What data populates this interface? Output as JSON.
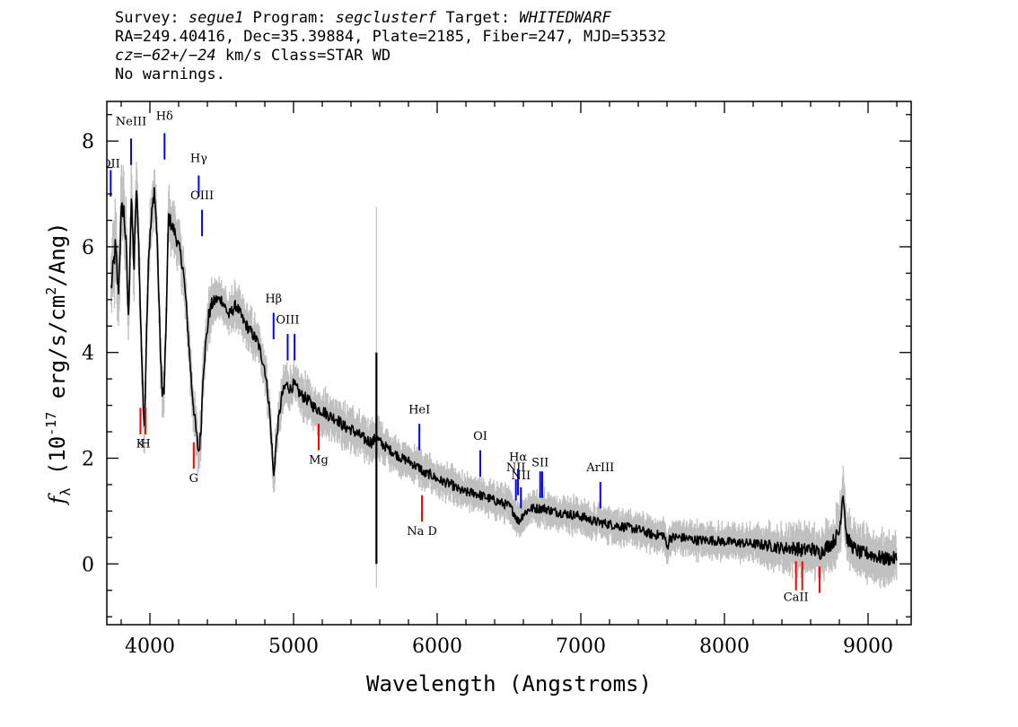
{
  "header": {
    "line1_a": "Survey: ",
    "survey": "segue1",
    "line1_b": " Program: ",
    "program": "segclusterf",
    "line1_c": " Target: ",
    "target": "WHITEDWARF",
    "line2": "RA=249.40416, Dec=35.39884, Plate=2185, Fiber=247, MJD=53532",
    "cz_value": "cz=−62+/−24",
    "line3_rest": " km/s Class=STAR WD",
    "line4": "No warnings."
  },
  "chart_data": {
    "type": "line",
    "xlabel": "Wavelength (Angstroms)",
    "ylabel_prefix": "f",
    "ylabel_sub": "λ",
    "ylabel_main": " (10",
    "ylabel_exp": "-17",
    "ylabel_rest": " erg/s/cm",
    "ylabel_exp2": "2",
    "ylabel_end": "/Ang)",
    "xlim": [
      3700,
      9300
    ],
    "ylim": [
      -1.15,
      8.75
    ],
    "xticks": [
      4000,
      5000,
      6000,
      7000,
      8000,
      9000
    ],
    "yticks": [
      0,
      2,
      4,
      6,
      8
    ],
    "colors": {
      "flux": "#000000",
      "error": "#c0c0c0",
      "emission": "#0000ff",
      "absorption": "#ff0000"
    },
    "series": [
      {
        "role": "flux",
        "x": [
          3730,
          3760,
          3780,
          3800,
          3815,
          3835,
          3850,
          3870,
          3890,
          3905,
          3920,
          3935,
          3950,
          3960,
          3975,
          3990,
          4010,
          4030,
          4050,
          4070,
          4085,
          4100,
          4115,
          4130,
          4150,
          4170,
          4190,
          4210,
          4230,
          4250,
          4270,
          4290,
          4310,
          4330,
          4340,
          4355,
          4370,
          4390,
          4410,
          4430,
          4460,
          4500,
          4550,
          4600,
          4650,
          4700,
          4750,
          4800,
          4830,
          4850,
          4861,
          4870,
          4890,
          4920,
          4950,
          4980,
          5000,
          5050,
          5100,
          5150,
          5200,
          5250,
          5300,
          5350,
          5400,
          5450,
          5500,
          5550,
          5577,
          5600,
          5650,
          5700,
          5750,
          5800,
          5850,
          5890,
          5900,
          5950,
          6000,
          6050,
          6100,
          6150,
          6200,
          6250,
          6300,
          6350,
          6400,
          6450,
          6500,
          6540,
          6563,
          6580,
          6600,
          6650,
          6700,
          6750,
          6800,
          6900,
          7000,
          7100,
          7200,
          7300,
          7400,
          7500,
          7580,
          7600,
          7620,
          7700,
          7800,
          7900,
          8000,
          8100,
          8200,
          8300,
          8400,
          8500,
          8542,
          8600,
          8662,
          8700,
          8750,
          8800,
          8826,
          8850,
          8900,
          8950,
          9000,
          9050,
          9100,
          9150,
          9200
        ],
        "y": [
          5.2,
          6.0,
          5.1,
          6.6,
          6.8,
          6.0,
          4.6,
          6.9,
          5.6,
          7.1,
          6.3,
          4.6,
          3.4,
          2.4,
          4.2,
          5.8,
          6.5,
          7.1,
          6.2,
          4.3,
          3.2,
          3.3,
          4.8,
          6.6,
          6.4,
          6.3,
          6.1,
          5.9,
          5.6,
          5.0,
          4.2,
          3.4,
          2.8,
          2.3,
          2.1,
          2.5,
          3.6,
          4.2,
          4.7,
          4.9,
          5.0,
          5.0,
          4.7,
          4.9,
          4.6,
          4.4,
          4.2,
          3.7,
          3.0,
          2.2,
          1.6,
          2.0,
          2.6,
          3.2,
          3.4,
          3.3,
          3.4,
          3.2,
          3.1,
          2.95,
          2.9,
          2.8,
          2.75,
          2.6,
          2.55,
          2.45,
          2.35,
          2.3,
          2.4,
          2.3,
          2.2,
          2.1,
          2.0,
          1.95,
          1.85,
          1.8,
          1.7,
          1.7,
          1.6,
          1.55,
          1.5,
          1.4,
          1.35,
          1.35,
          1.3,
          1.25,
          1.2,
          1.15,
          1.1,
          0.95,
          0.8,
          0.85,
          0.95,
          1.05,
          1.05,
          1.05,
          1.0,
          0.95,
          0.9,
          0.8,
          0.75,
          0.7,
          0.65,
          0.55,
          0.55,
          0.3,
          0.5,
          0.5,
          0.45,
          0.45,
          0.42,
          0.4,
          0.38,
          0.35,
          0.3,
          0.3,
          0.25,
          0.3,
          0.2,
          0.3,
          0.4,
          0.6,
          1.4,
          0.5,
          0.3,
          0.2,
          0.2,
          0.15,
          0.1,
          0.1,
          0.1
        ],
        "error_band": [
          0.45,
          0.55,
          0.5,
          0.5,
          0.45,
          0.45,
          0.4,
          0.45,
          0.4,
          0.4,
          0.4,
          0.4,
          0.4,
          0.4,
          0.35,
          0.35,
          0.35,
          0.35,
          0.35,
          0.35,
          0.35,
          0.35,
          0.35,
          0.35,
          0.3,
          0.3,
          0.3,
          0.3,
          0.3,
          0.3,
          0.3,
          0.3,
          0.3,
          0.3,
          0.3,
          0.3,
          0.3,
          0.3,
          0.3,
          0.3,
          0.25,
          0.25,
          0.25,
          0.25,
          0.25,
          0.25,
          0.25,
          0.25,
          0.25,
          0.25,
          0.25,
          0.25,
          0.25,
          0.25,
          0.25,
          0.25,
          0.25,
          0.25,
          0.25,
          0.25,
          0.25,
          0.25,
          0.25,
          0.25,
          0.25,
          0.25,
          0.25,
          0.25,
          0.25,
          0.25,
          0.2,
          0.2,
          0.2,
          0.2,
          0.2,
          0.2,
          0.2,
          0.2,
          0.2,
          0.2,
          0.2,
          0.2,
          0.2,
          0.2,
          0.2,
          0.2,
          0.2,
          0.2,
          0.2,
          0.2,
          0.2,
          0.2,
          0.2,
          0.2,
          0.2,
          0.2,
          0.2,
          0.2,
          0.2,
          0.2,
          0.2,
          0.2,
          0.2,
          0.2,
          0.2,
          0.2,
          0.2,
          0.2,
          0.2,
          0.2,
          0.2,
          0.2,
          0.2,
          0.25,
          0.25,
          0.3,
          0.3,
          0.3,
          0.3,
          0.3,
          0.3,
          0.35,
          0.35,
          0.3,
          0.3,
          0.3,
          0.3,
          0.3,
          0.3,
          0.3,
          0.3
        ]
      }
    ],
    "spikes": [
      {
        "x": 5577,
        "y_low": 0.0,
        "y_high": 4.0,
        "kind": "flux"
      },
      {
        "x": 5577,
        "y_low": -0.45,
        "y_high": 6.75,
        "kind": "error"
      }
    ],
    "line_markers": [
      {
        "label": "OII",
        "x": 3727,
        "y_top": 7.45,
        "y_bottom": 6.95,
        "label_y": 7.5,
        "kind": "emission"
      },
      {
        "label": "NeIII",
        "x": 3869,
        "y_top": 8.05,
        "y_bottom": 7.55,
        "label_y": 8.3,
        "kind": "emission"
      },
      {
        "label": "Hδ",
        "x": 4102,
        "y_top": 8.15,
        "y_bottom": 7.65,
        "label_y": 8.4,
        "kind": "emission"
      },
      {
        "label": "Hγ",
        "x": 4340,
        "y_top": 7.35,
        "y_bottom": 6.95,
        "label_y": 7.6,
        "kind": "emission"
      },
      {
        "label": "OIII",
        "x": 4363,
        "y_top": 6.7,
        "y_bottom": 6.2,
        "label_y": 6.9,
        "kind": "emission"
      },
      {
        "label": "Hβ",
        "x": 4861,
        "y_top": 4.75,
        "y_bottom": 4.25,
        "label_y": 4.95,
        "kind": "emission"
      },
      {
        "label": "OIII",
        "x": 4959,
        "y_top": 4.35,
        "y_bottom": 3.85,
        "label_y": 4.55,
        "kind": "emission"
      },
      {
        "label": "",
        "x": 5007,
        "y_top": 4.35,
        "y_bottom": 3.85,
        "label_y": 4.55,
        "kind": "emission"
      },
      {
        "label": "HeI",
        "x": 5876,
        "y_top": 2.65,
        "y_bottom": 2.15,
        "label_y": 2.85,
        "kind": "emission"
      },
      {
        "label": "OI",
        "x": 6300,
        "y_top": 2.15,
        "y_bottom": 1.65,
        "label_y": 2.35,
        "kind": "emission"
      },
      {
        "label": "NII",
        "x": 6548,
        "y_top": 1.6,
        "y_bottom": 1.2,
        "label_y": 1.75,
        "kind": "emission"
      },
      {
        "label": "Hα",
        "x": 6563,
        "y_top": 1.8,
        "y_bottom": 1.3,
        "label_y": 1.95,
        "kind": "emission"
      },
      {
        "label": "NII",
        "x": 6583,
        "y_top": 1.45,
        "y_bottom": 1.05,
        "label_y": 1.6,
        "kind": "emission"
      },
      {
        "label": "SII",
        "x": 6717,
        "y_top": 1.75,
        "y_bottom": 1.25,
        "label_y": 1.85,
        "kind": "emission"
      },
      {
        "label": "",
        "x": 6731,
        "y_top": 1.75,
        "y_bottom": 1.25,
        "label_y": 1.85,
        "kind": "emission"
      },
      {
        "label": "ArIII",
        "x": 7136,
        "y_top": 1.55,
        "y_bottom": 1.05,
        "label_y": 1.75,
        "kind": "emission"
      },
      {
        "label": "K",
        "x": 3934,
        "y_top": 2.95,
        "y_bottom": 2.45,
        "label_y": 2.2,
        "kind": "absorption"
      },
      {
        "label": "H",
        "x": 3969,
        "y_top": 2.95,
        "y_bottom": 2.45,
        "label_y": 2.2,
        "kind": "absorption"
      },
      {
        "label": "G",
        "x": 4305,
        "y_top": 2.3,
        "y_bottom": 1.8,
        "label_y": 1.55,
        "kind": "absorption"
      },
      {
        "label": "Mg",
        "x": 5175,
        "y_top": 2.65,
        "y_bottom": 2.15,
        "label_y": 1.9,
        "kind": "absorption"
      },
      {
        "label": "Na D",
        "x": 5894,
        "y_top": 1.3,
        "y_bottom": 0.8,
        "label_y": 0.55,
        "kind": "absorption"
      },
      {
        "label": "CaII",
        "x": 8498,
        "y_top": 0.05,
        "y_bottom": -0.5,
        "label_y": -0.7,
        "kind": "absorption"
      },
      {
        "label": "",
        "x": 8542,
        "y_top": 0.05,
        "y_bottom": -0.5,
        "label_y": -0.7,
        "kind": "absorption"
      },
      {
        "label": "",
        "x": 8662,
        "y_top": -0.05,
        "y_bottom": -0.55,
        "label_y": -0.7,
        "kind": "absorption"
      }
    ]
  }
}
